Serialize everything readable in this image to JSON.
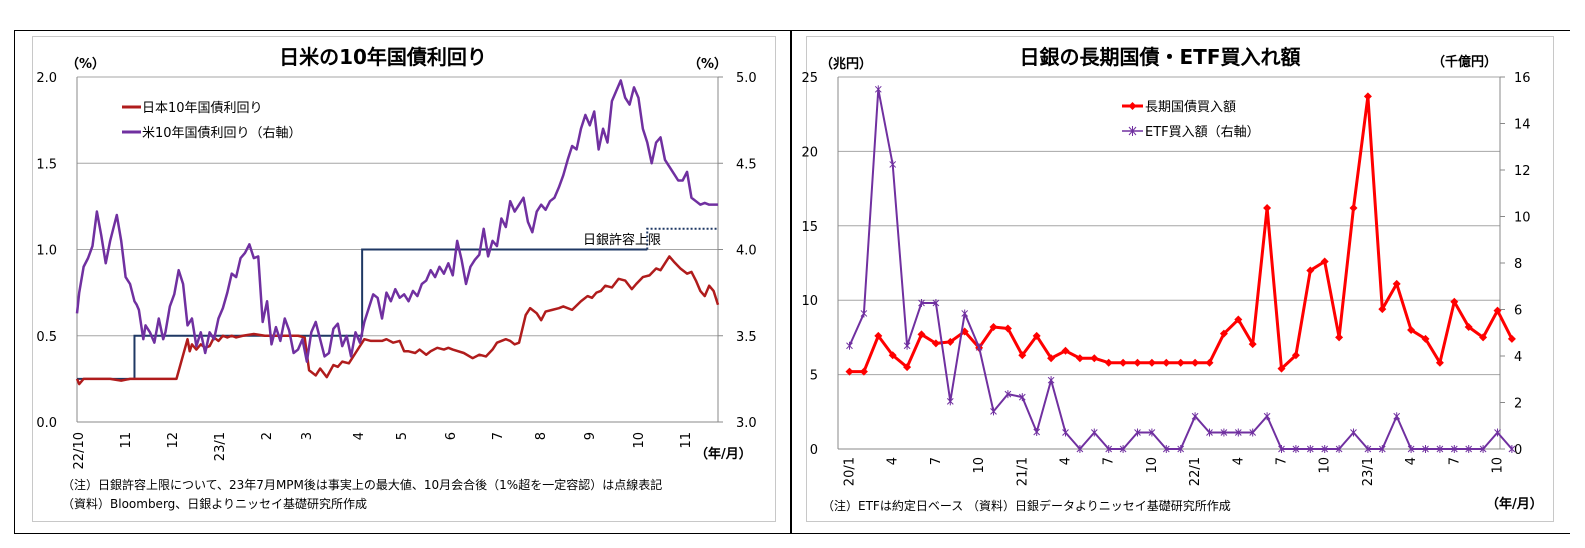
{
  "chart_data": [
    {
      "type": "line",
      "title": "日米の10年国債利回り",
      "ylabel_left": "（%）",
      "ylabel_right": "（%）",
      "xlabel": "（年/月）",
      "ylim_left": [
        0.0,
        2.0
      ],
      "ylim_right": [
        3.0,
        5.0
      ],
      "yticks_left": [
        "0.0",
        "0.5",
        "1.0",
        "1.5",
        "2.0"
      ],
      "yticks_right": [
        "3.0",
        "3.5",
        "4.0",
        "4.5",
        "5.0"
      ],
      "x_ticks": [
        "22/10",
        "11",
        "12",
        "23/1",
        "2",
        "3",
        "4",
        "5",
        "6",
        "7",
        "8",
        "9",
        "10",
        "11"
      ],
      "grid": true,
      "legend_position": "top-left",
      "annotation": "日銀許容上限",
      "x_month_index_note": "x values are months since 2022-10-01 (0 = 22/10)",
      "series": [
        {
          "name": "日本10年国債利回り",
          "axis": "left",
          "color": "#b01c1c",
          "x": [
            0,
            0.1,
            0.3,
            0.6,
            1.0,
            1.5,
            2.0,
            2.4,
            2.6,
            2.65,
            2.8,
            3.0,
            3.2,
            3.4,
            3.6,
            3.8,
            4.0,
            4.5,
            5.0,
            5.1,
            5.2,
            5.4,
            5.6,
            5.8,
            6.0,
            6.2,
            6.4,
            6.6,
            6.8,
            7.0,
            7.2,
            7.5,
            8.0,
            8.5,
            9.0,
            9.3,
            9.6,
            10.0,
            10.3,
            10.5,
            10.8,
            11.0,
            11.3,
            11.6,
            11.8,
            12.0,
            12.3,
            12.6,
            13.0,
            13.3,
            13.6,
            13.8,
            14.0,
            14.3,
            14.6,
            14.8,
            15.0,
            15.3,
            15.5,
            15.8,
            16.0,
            16.3,
            16.6,
            16.8,
            17.0,
            17.5,
            17.9,
            18.2,
            18.5,
            18.8,
            19.0,
            19.4,
            19.6,
            19.8,
            20.0,
            20.3,
            20.5,
            20.8,
            21.0,
            21.2,
            21.5,
            21.8,
            22.0,
            22.4,
            22.8,
            23.1,
            23.3,
            23.5,
            23.7,
            23.9,
            24.2,
            24.5,
            24.8,
            25.1,
            25.3,
            25.6
          ],
          "values": [
            0.25,
            0.22,
            0.25,
            0.25,
            0.25,
            0.25,
            0.24,
            0.25,
            0.25,
            0.25,
            0.25,
            0.25,
            0.25,
            0.25,
            0.25,
            0.25,
            0.25,
            0.25,
            0.48,
            0.41,
            0.45,
            0.42,
            0.45,
            0.43,
            0.44,
            0.49,
            0.47,
            0.5,
            0.49,
            0.5,
            0.49,
            0.5,
            0.51,
            0.5,
            0.5,
            0.5,
            0.5,
            0.5,
            0.49,
            0.3,
            0.27,
            0.31,
            0.26,
            0.33,
            0.32,
            0.35,
            0.34,
            0.4,
            0.48,
            0.47,
            0.47,
            0.47,
            0.48,
            0.46,
            0.47,
            0.41,
            0.41,
            0.4,
            0.42,
            0.39,
            0.41,
            0.43,
            0.42,
            0.43,
            0.42,
            0.4,
            0.37,
            0.39,
            0.38,
            0.42,
            0.46,
            0.48,
            0.47,
            0.45,
            0.46,
            0.62,
            0.66,
            0.63,
            0.59,
            0.64,
            0.65,
            0.66,
            0.67,
            0.65,
            0.7,
            0.73,
            0.72,
            0.75,
            0.76,
            0.79,
            0.78,
            0.83,
            0.82,
            0.77,
            0.8,
            0.84
          ],
          "values_tail_x": [
            25.9,
            26.2,
            26.4,
            26.6,
            26.8,
            27.0,
            27.3,
            27.6,
            27.8,
            28.0,
            28.2,
            28.4,
            28.6,
            28.8,
            29.0
          ],
          "values_tail": [
            0.85,
            0.89,
            0.88,
            0.92,
            0.96,
            0.93,
            0.89,
            0.86,
            0.87,
            0.82,
            0.76,
            0.73,
            0.79,
            0.76,
            0.68
          ]
        },
        {
          "name": "米10年国債利回り（右軸）",
          "axis": "right",
          "color": "#7030a0",
          "x": [
            0,
            0.1,
            0.3,
            0.5,
            0.7,
            0.9,
            1.1,
            1.3,
            1.5,
            1.6,
            1.8,
            2.0,
            2.2,
            2.4,
            2.6,
            2.7,
            2.8,
            3.0,
            3.1,
            3.3,
            3.5,
            3.7,
            3.9,
            4.0,
            4.2,
            4.4,
            4.6,
            4.8,
            5.0,
            5.2,
            5.4,
            5.6,
            5.8,
            6.0,
            6.2,
            6.4,
            6.6,
            6.8,
            7.0,
            7.2,
            7.4,
            7.6,
            7.8,
            8.0,
            8.2,
            8.4,
            8.6,
            8.8,
            9.0,
            9.2,
            9.4,
            9.6,
            9.8,
            10.0,
            10.2,
            10.4,
            10.6,
            10.8,
            11.0,
            11.2,
            11.4,
            11.6,
            11.8,
            12.0,
            12.2,
            12.4,
            12.6,
            12.8,
            13.0,
            13.2,
            13.4,
            13.6,
            13.8,
            14.0,
            14.2,
            14.4,
            14.6,
            14.8,
            15.0,
            15.2,
            15.4,
            15.6,
            15.8,
            16.0,
            16.2,
            16.4,
            16.6,
            16.8,
            17.0,
            17.2,
            17.4,
            17.6,
            17.8,
            18.0,
            18.2,
            18.4,
            18.6,
            18.8,
            19.0,
            19.2,
            19.4,
            19.6,
            19.8,
            20.0,
            20.2,
            20.4,
            20.6,
            20.8,
            21.0,
            21.2,
            21.4,
            21.6,
            21.8,
            22.0,
            22.2,
            22.4,
            22.6,
            22.8,
            23.0,
            23.2,
            23.4,
            23.6,
            23.8,
            24.0,
            24.2,
            24.4,
            24.6,
            24.8,
            25.0,
            25.2,
            25.4,
            25.6,
            25.8,
            26.0,
            26.2,
            26.4,
            26.6,
            26.8,
            27.0,
            27.2,
            27.4,
            27.6,
            27.8,
            28.0,
            28.2,
            28.4,
            28.6,
            28.8,
            29.0
          ],
          "values": [
            3.63,
            3.75,
            3.9,
            3.95,
            4.02,
            4.22,
            4.08,
            3.92,
            4.05,
            4.1,
            4.2,
            4.05,
            3.84,
            3.8,
            3.7,
            3.68,
            3.65,
            3.48,
            3.56,
            3.52,
            3.46,
            3.6,
            3.48,
            3.52,
            3.67,
            3.74,
            3.88,
            3.8,
            3.56,
            3.6,
            3.44,
            3.52,
            3.4,
            3.52,
            3.48,
            3.6,
            3.66,
            3.75,
            3.86,
            3.84,
            3.95,
            3.98,
            4.03,
            3.95,
            3.96,
            3.58,
            3.7,
            3.45,
            3.55,
            3.47,
            3.6,
            3.53,
            3.4,
            3.42,
            3.48,
            3.35,
            3.52,
            3.58,
            3.48,
            3.38,
            3.4,
            3.54,
            3.57,
            3.44,
            3.5,
            3.38,
            3.52,
            3.46,
            3.58,
            3.66,
            3.74,
            3.72,
            3.6,
            3.75,
            3.7,
            3.77,
            3.72,
            3.74,
            3.7,
            3.76,
            3.73,
            3.8,
            3.82,
            3.88,
            3.84,
            3.9,
            3.86,
            3.92,
            3.85,
            4.05,
            3.94,
            3.8,
            3.9,
            3.94,
            3.97,
            4.12,
            3.96,
            4.05,
            4.02,
            4.18,
            4.13,
            4.28,
            4.22,
            4.26,
            4.3,
            4.16,
            4.1,
            4.22,
            4.26,
            4.23,
            4.28,
            4.3,
            4.36,
            4.43,
            4.52,
            4.6,
            4.58,
            4.7,
            4.78,
            4.72,
            4.8,
            4.58,
            4.7,
            4.62,
            4.86,
            4.92,
            4.98,
            4.88,
            4.84,
            4.94,
            4.88,
            4.7,
            4.62,
            4.5,
            4.62,
            4.65,
            4.52,
            4.48,
            4.44,
            4.4,
            4.4,
            4.45,
            4.3,
            4.28,
            4.26,
            4.27,
            4.26,
            4.26,
            4.26
          ]
        },
        {
          "name": "日銀許容上限",
          "axis": "left",
          "color": "#1f3864",
          "style": "solid-then-dotted",
          "steps": [
            {
              "from": 0,
              "to": 2.6,
              "value": 0.25
            },
            {
              "from": 2.6,
              "to": 9.9,
              "value": 0.5
            },
            {
              "from": 9.9,
              "to": 12.9,
              "value": 0.5
            },
            {
              "from": 12.9,
              "to": 25.8,
              "value": 1.0
            }
          ],
          "dotted_from": 25.8,
          "dotted_value": 1.12
        }
      ],
      "note_lines": [
        "（注）日銀許容上限について、23年7月MPM後は事実上の最大値、10月会合後（1%超を一定容認）は点線表記",
        "（資料）Bloomberg、日銀よりニッセイ基礎研究所作成"
      ]
    },
    {
      "type": "line",
      "title": "日銀の長期国債・ETF買入れ額",
      "ylabel_left": "（兆円）",
      "ylabel_right": "（千億円）",
      "xlabel": "（年/月）",
      "ylim_left": [
        0,
        25
      ],
      "ylim_right": [
        0,
        16
      ],
      "yticks_left": [
        "0",
        "5",
        "10",
        "15",
        "20",
        "25"
      ],
      "yticks_right": [
        "0",
        "2",
        "4",
        "6",
        "8",
        "10",
        "12",
        "14",
        "16"
      ],
      "grid": true,
      "legend_position": "top-center-right",
      "categories": [
        "20/1",
        "20/2",
        "20/3",
        "20/4",
        "20/5",
        "20/6",
        "20/7",
        "20/8",
        "20/9",
        "20/10",
        "20/11",
        "20/12",
        "21/1",
        "21/2",
        "21/3",
        "21/4",
        "21/5",
        "21/6",
        "21/7",
        "21/8",
        "21/9",
        "21/10",
        "21/11",
        "21/12",
        "22/1",
        "22/2",
        "22/3",
        "22/4",
        "22/5",
        "22/6",
        "22/7",
        "22/8",
        "22/9",
        "22/10",
        "22/11",
        "22/12",
        "23/1",
        "23/2",
        "23/3",
        "23/4",
        "23/5",
        "23/6",
        "23/7",
        "23/8",
        "23/9",
        "23/10",
        "23/11"
      ],
      "x_tick_labels": [
        "20/1",
        "4",
        "7",
        "10",
        "21/1",
        "4",
        "7",
        "10",
        "22/1",
        "4",
        "7",
        "10",
        "23/1",
        "4",
        "7",
        "10"
      ],
      "series": [
        {
          "name": "長期国債買入額",
          "axis": "left",
          "color": "#ff0000",
          "marker": "diamond",
          "values": [
            5.2,
            5.2,
            7.6,
            6.3,
            5.5,
            7.7,
            7.1,
            7.2,
            7.9,
            6.8,
            8.2,
            8.1,
            6.3,
            7.6,
            6.1,
            6.6,
            6.1,
            6.1,
            5.8,
            5.8,
            5.8,
            5.8,
            5.8,
            5.8,
            5.8,
            5.8,
            7.75,
            8.7,
            7.05,
            16.2,
            5.4,
            6.3,
            12.0,
            12.6,
            7.5,
            16.2,
            23.7,
            9.4,
            11.1,
            8.0,
            7.4,
            5.8,
            9.9,
            8.2,
            7.5,
            9.3,
            7.4
          ]
        },
        {
          "name": "ETF買入額（右軸）",
          "axis": "right",
          "color": "#7030a0",
          "marker": "star",
          "values": [
            4.44,
            5.83,
            15.47,
            12.24,
            4.44,
            6.28,
            6.28,
            2.05,
            5.83,
            4.37,
            1.62,
            2.36,
            2.23,
            0.73,
            2.96,
            0.71,
            0,
            0.71,
            0,
            0,
            0.71,
            0.71,
            0,
            0,
            1.41,
            0.71,
            0.71,
            0.71,
            0.71,
            1.41,
            0,
            0,
            0,
            0,
            0,
            0.71,
            0,
            0,
            1.41,
            0,
            0,
            0,
            0,
            0,
            0,
            0.71,
            0
          ]
        }
      ],
      "note_lines": [
        "（注）ETFは約定日ベース （資料）日銀データよりニッセイ基礎研究所作成"
      ]
    }
  ]
}
